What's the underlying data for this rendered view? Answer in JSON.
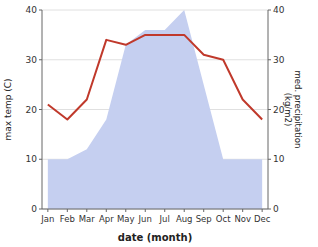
{
  "chart_data": {
    "type": "line",
    "categories": [
      "Jan",
      "Feb",
      "Mar",
      "Apr",
      "May",
      "Jun",
      "Jul",
      "Aug",
      "Sep",
      "Oct",
      "Nov",
      "Dec"
    ],
    "series": [
      {
        "type": "area",
        "color": "#c5cff0",
        "values": [
          10,
          10,
          12,
          18,
          33,
          36,
          36,
          40,
          25,
          10,
          10,
          10
        ]
      },
      {
        "type": "line",
        "color": "#c0392b",
        "axis": "y2",
        "values": [
          21,
          18,
          22,
          34,
          33,
          35,
          35,
          35,
          31,
          30,
          22,
          18
        ]
      }
    ],
    "xlabel": "date (month)",
    "ylabel": "max temp (C)",
    "y2label": "med. precipitation\n(kg/m2)",
    "ylim": [
      0,
      40
    ],
    "yticks": [
      0,
      10,
      20,
      30,
      40
    ],
    "y2lim": [
      0,
      40
    ],
    "y2ticks": [
      0,
      10,
      20,
      30,
      40
    ],
    "grid": true
  }
}
